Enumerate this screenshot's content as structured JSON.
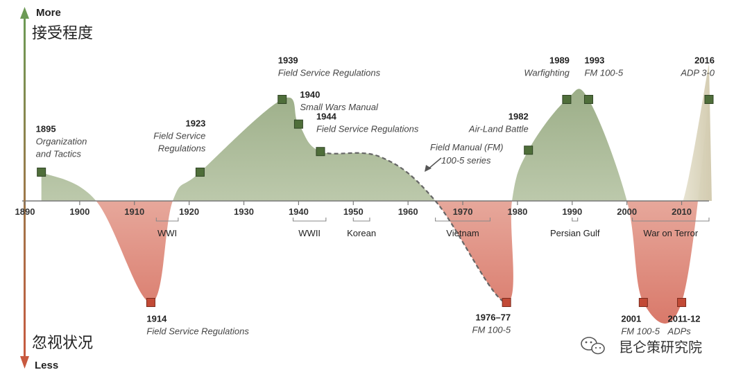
{
  "chart_data": {
    "type": "area",
    "title": "",
    "xlim": [
      1890,
      2015
    ],
    "ylim": [
      -1,
      1
    ],
    "x_ticks": [
      1890,
      1900,
      1910,
      1920,
      1930,
      1940,
      1950,
      1960,
      1970,
      1980,
      1990,
      2000,
      2010
    ],
    "y_axis": {
      "top_label_en": "More",
      "top_label_cn": "接受程度",
      "bottom_label_en": "Less",
      "bottom_label_cn": "忽视状况"
    },
    "series": [
      {
        "points": [
          {
            "x": 1893,
            "y": 0.21
          },
          {
            "x": 1903,
            "y": 0.0
          },
          {
            "x": 1913,
            "y": -0.74
          },
          {
            "x": 1917,
            "y": 0.0
          },
          {
            "x": 1922,
            "y": 0.21
          },
          {
            "x": 1937,
            "y": 0.74
          },
          {
            "x": 1940,
            "y": 0.56
          },
          {
            "x": 1944,
            "y": 0.36
          },
          {
            "x": 1955,
            "y": 0.32
          },
          {
            "x": 1965,
            "y": 0.0
          },
          {
            "x": 1978,
            "y": -0.74
          },
          {
            "x": 1979,
            "y": 0.0
          },
          {
            "x": 1982,
            "y": 0.37
          },
          {
            "x": 1989,
            "y": 0.74
          },
          {
            "x": 1993,
            "y": 0.74
          },
          {
            "x": 2000,
            "y": 0.0
          },
          {
            "x": 2003,
            "y": -0.74
          },
          {
            "x": 2010,
            "y": -0.74
          },
          {
            "x": 2015,
            "y": 0.74
          }
        ]
      }
    ],
    "events": [
      {
        "x": 1893,
        "y": 0.21,
        "year": "1895",
        "name_lines": [
          "Organization",
          "and Tactics"
        ]
      },
      {
        "x": 1913,
        "y": -0.74,
        "year": "1914",
        "name_lines": [
          "Field Service Regulations"
        ]
      },
      {
        "x": 1922,
        "y": 0.21,
        "year": "1923",
        "name_lines": [
          "Field Service",
          "Regulations"
        ]
      },
      {
        "x": 1937,
        "y": 0.74,
        "year": "1939",
        "name_lines": [
          "Field Service Regulations"
        ]
      },
      {
        "x": 1940,
        "y": 0.56,
        "year": "1940",
        "name_lines": [
          "Small Wars Manual"
        ]
      },
      {
        "x": 1944,
        "y": 0.36,
        "year": "1944",
        "name_lines": [
          "Field Service Regulations"
        ]
      },
      {
        "x": 1978,
        "y": -0.74,
        "year": "1976–77",
        "name_lines": [
          "FM 100-5"
        ]
      },
      {
        "x": 1982,
        "y": 0.37,
        "year": "1982",
        "name_lines": [
          "Air-Land Battle"
        ]
      },
      {
        "x": 1989,
        "y": 0.74,
        "year": "1989",
        "name_lines": [
          "Warfighting"
        ]
      },
      {
        "x": 1993,
        "y": 0.74,
        "year": "1993",
        "name_lines": [
          "FM 100-5"
        ]
      },
      {
        "x": 2003,
        "y": -0.74,
        "year": "2001",
        "name_lines": [
          "FM 100-5"
        ]
      },
      {
        "x": 2010,
        "y": -0.74,
        "year": "2011-12",
        "name_lines": [
          "ADPs"
        ]
      },
      {
        "x": 2015,
        "y": 0.74,
        "year": "2016",
        "name_lines": [
          "ADP 3-0"
        ]
      }
    ],
    "eras": [
      {
        "label": "WWI",
        "start": 1914,
        "end": 1918
      },
      {
        "label": "WWII",
        "start": 1939,
        "end": 1945
      },
      {
        "label": "Korean",
        "start": 1950,
        "end": 1953
      },
      {
        "label": "Vietnam",
        "start": 1965,
        "end": 1975
      },
      {
        "label": "Persian Gulf",
        "start": 1990,
        "end": 1991
      },
      {
        "label": "War on Terror",
        "start": 2001,
        "end": 2015
      }
    ],
    "annotation": {
      "lines": [
        "Field Manual (FM)",
        "100-5 series"
      ],
      "dashed_from_x": 1944,
      "dashed_to_x": 1978
    },
    "colors": {
      "positive": "#9cae88",
      "negative": "#d9796a",
      "axis_up": "#6c9a55",
      "axis_down": "#c8593f",
      "marker_pos": "#4f6e3a",
      "marker_neg": "#c24a36"
    }
  },
  "watermark": {
    "icon": "wechat-icon",
    "text": "昆仑策研究院"
  }
}
